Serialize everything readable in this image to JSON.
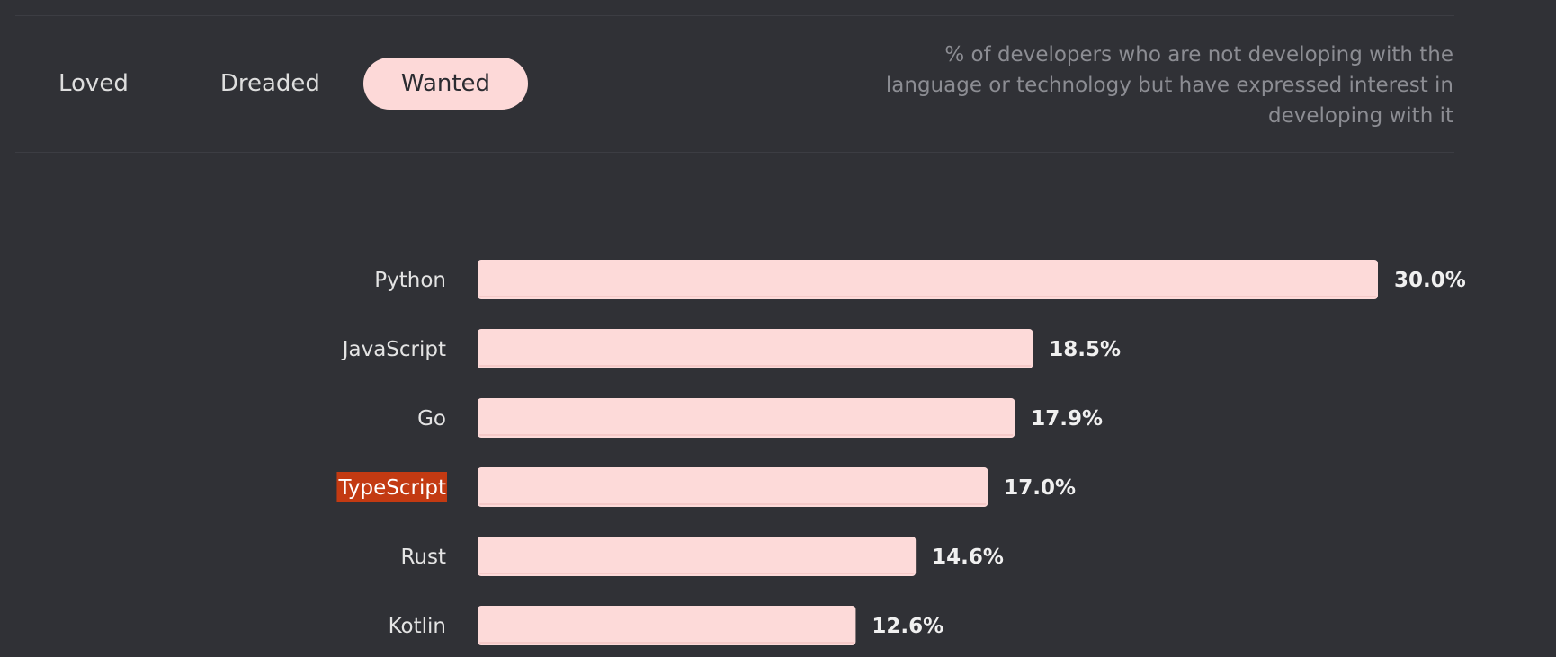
{
  "tabs": [
    {
      "label": "Loved",
      "active": false
    },
    {
      "label": "Dreaded",
      "active": false
    },
    {
      "label": "Wanted",
      "active": true
    }
  ],
  "description": "% of developers who are not developing with the language or technology but have expressed interest in developing with it",
  "colors": {
    "background": "#303136",
    "bar": "#fddad9",
    "bar_shadow": "#f5c9c8",
    "active_tab": "#fdd9d8",
    "highlight": "#c33a12"
  },
  "chart_data": {
    "type": "bar",
    "orientation": "horizontal",
    "categories": [
      "Python",
      "JavaScript",
      "Go",
      "TypeScript",
      "Rust",
      "Kotlin"
    ],
    "values": [
      30.0,
      18.5,
      17.9,
      17.0,
      14.6,
      12.6
    ],
    "value_labels": [
      "30.0%",
      "18.5%",
      "17.9%",
      "17.0%",
      "14.6%",
      "12.6%"
    ],
    "highlighted_category": "TypeScript",
    "xlim": [
      0,
      30.0
    ],
    "title": "",
    "xlabel": "",
    "ylabel": "",
    "grid": false,
    "legend": "none"
  }
}
